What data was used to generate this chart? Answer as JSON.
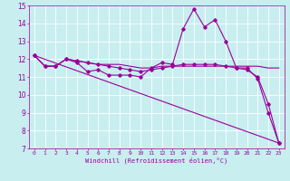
{
  "xlabel": "Windchill (Refroidissement éolien,°C)",
  "ylabel": "",
  "bg_color": "#c8eef0",
  "grid_color": "#ffffff",
  "line_color": "#990099",
  "xlim": [
    -0.5,
    23.5
  ],
  "ylim": [
    7,
    15
  ],
  "xticks": [
    0,
    1,
    2,
    3,
    4,
    5,
    6,
    7,
    8,
    9,
    10,
    11,
    12,
    13,
    14,
    15,
    16,
    17,
    18,
    19,
    20,
    21,
    22,
    23
  ],
  "yticks": [
    7,
    8,
    9,
    10,
    11,
    12,
    13,
    14,
    15
  ],
  "line1_x": [
    0,
    1,
    2,
    3,
    4,
    5,
    6,
    7,
    8,
    9,
    10,
    11,
    12,
    13,
    14,
    15,
    16,
    17,
    18,
    19,
    20,
    21,
    22,
    23
  ],
  "line1_y": [
    12.2,
    11.6,
    11.6,
    12.0,
    11.8,
    11.3,
    11.4,
    11.1,
    11.1,
    11.1,
    11.0,
    11.5,
    11.8,
    11.7,
    13.7,
    14.8,
    13.8,
    14.2,
    13.0,
    11.5,
    11.5,
    10.9,
    9.0,
    7.3
  ],
  "line2_x": [
    0,
    1,
    2,
    3,
    4,
    5,
    6,
    7,
    8,
    9,
    10,
    11,
    12,
    13,
    14,
    15,
    16,
    17,
    18,
    19,
    20,
    21,
    22,
    23
  ],
  "line2_y": [
    12.2,
    11.6,
    11.6,
    12.0,
    11.9,
    11.8,
    11.7,
    11.7,
    11.7,
    11.6,
    11.5,
    11.5,
    11.6,
    11.6,
    11.6,
    11.6,
    11.6,
    11.6,
    11.6,
    11.6,
    11.6,
    11.6,
    11.5,
    11.5
  ],
  "line3_x": [
    0,
    1,
    2,
    3,
    4,
    5,
    6,
    7,
    8,
    9,
    10,
    11,
    12,
    13,
    14,
    15,
    16,
    17,
    18,
    19,
    20,
    21,
    22,
    23
  ],
  "line3_y": [
    12.2,
    11.6,
    11.6,
    12.0,
    11.9,
    11.8,
    11.7,
    11.6,
    11.5,
    11.4,
    11.3,
    11.4,
    11.5,
    11.6,
    11.7,
    11.7,
    11.7,
    11.7,
    11.6,
    11.5,
    11.4,
    11.0,
    9.5,
    7.3
  ],
  "line4_x": [
    0,
    23
  ],
  "line4_y": [
    12.2,
    7.3
  ],
  "marker": "D",
  "markersize": 1.8,
  "linewidth": 0.8
}
